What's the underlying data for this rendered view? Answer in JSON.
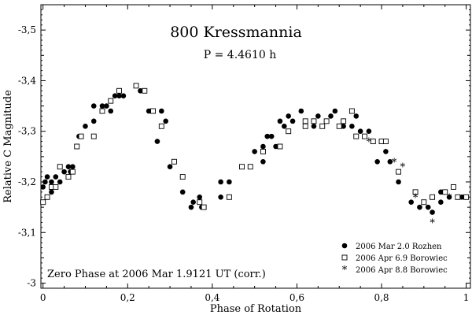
{
  "chart_data": {
    "type": "scatter",
    "title": "800 Kressmannia",
    "subtitle": "P = 4.4610 h",
    "xlabel": "Phase of Rotation",
    "ylabel": "Relative C Magnitude",
    "annotation": "Zero Phase at 2006 Mar 1.9121 UT (corr.)",
    "xlim": [
      -0.005,
      1.01
    ],
    "ylim": [
      -2.99,
      -3.55
    ],
    "x_ticks": [
      0,
      0.2,
      0.4,
      0.6,
      0.8,
      1
    ],
    "x_tick_labels": [
      "0",
      "0,2",
      "0,4",
      "0,6",
      "0,8",
      "1"
    ],
    "y_ticks": [
      -3.0,
      -3.1,
      -3.2,
      -3.3,
      -3.4,
      -3.5
    ],
    "y_tick_labels": [
      "-3",
      "-3,1",
      "-3,2",
      "-3,3",
      "-3,4",
      "-3,5"
    ],
    "legend_position": "bottom-right",
    "series": [
      {
        "name": "2006 Mar 2.0 Rozhen",
        "marker": "filled-circle",
        "points": [
          [
            0.0,
            -3.19
          ],
          [
            0.005,
            -3.2
          ],
          [
            0.01,
            -3.21
          ],
          [
            0.02,
            -3.18
          ],
          [
            0.02,
            -3.2
          ],
          [
            0.03,
            -3.21
          ],
          [
            0.04,
            -3.2
          ],
          [
            0.05,
            -3.22
          ],
          [
            0.06,
            -3.23
          ],
          [
            0.065,
            -3.22
          ],
          [
            0.07,
            -3.23
          ],
          [
            0.08,
            -3.27
          ],
          [
            0.085,
            -3.29
          ],
          [
            0.1,
            -3.31
          ],
          [
            0.12,
            -3.32
          ],
          [
            0.12,
            -3.35
          ],
          [
            0.14,
            -3.35
          ],
          [
            0.15,
            -3.35
          ],
          [
            0.16,
            -3.34
          ],
          [
            0.17,
            -3.37
          ],
          [
            0.18,
            -3.37
          ],
          [
            0.19,
            -3.37
          ],
          [
            0.23,
            -3.38
          ],
          [
            0.25,
            -3.34
          ],
          [
            0.27,
            -3.28
          ],
          [
            0.28,
            -3.34
          ],
          [
            0.29,
            -3.32
          ],
          [
            0.3,
            -3.23
          ],
          [
            0.31,
            -3.24
          ],
          [
            0.33,
            -3.18
          ],
          [
            0.35,
            -3.15
          ],
          [
            0.355,
            -3.16
          ],
          [
            0.37,
            -3.17
          ],
          [
            0.375,
            -3.15
          ],
          [
            0.42,
            -3.17
          ],
          [
            0.42,
            -3.2
          ],
          [
            0.44,
            -3.2
          ],
          [
            0.5,
            -3.26
          ],
          [
            0.52,
            -3.24
          ],
          [
            0.52,
            -3.27
          ],
          [
            0.53,
            -3.29
          ],
          [
            0.54,
            -3.29
          ],
          [
            0.55,
            -3.27
          ],
          [
            0.56,
            -3.32
          ],
          [
            0.57,
            -3.31
          ],
          [
            0.58,
            -3.33
          ],
          [
            0.59,
            -3.32
          ],
          [
            0.61,
            -3.34
          ],
          [
            0.64,
            -3.31
          ],
          [
            0.65,
            -3.33
          ],
          [
            0.68,
            -3.33
          ],
          [
            0.69,
            -3.34
          ],
          [
            0.71,
            -3.31
          ],
          [
            0.73,
            -3.31
          ],
          [
            0.74,
            -3.33
          ],
          [
            0.75,
            -3.3
          ],
          [
            0.77,
            -3.3
          ],
          [
            0.79,
            -3.24
          ],
          [
            0.81,
            -3.26
          ],
          [
            0.82,
            -3.24
          ],
          [
            0.84,
            -3.2
          ],
          [
            0.87,
            -3.16
          ],
          [
            0.89,
            -3.15
          ],
          [
            0.91,
            -3.15
          ],
          [
            0.92,
            -3.14
          ],
          [
            0.94,
            -3.16
          ],
          [
            0.94,
            -3.18
          ],
          [
            0.96,
            -3.17
          ],
          [
            0.98,
            -3.17
          ],
          [
            0.99,
            -3.17
          ]
        ]
      },
      {
        "name": "2006 Apr 6.9 Borowiec",
        "marker": "open-square",
        "points": [
          [
            0.0,
            -3.16
          ],
          [
            0.01,
            -3.17
          ],
          [
            0.02,
            -3.19
          ],
          [
            0.03,
            -3.19
          ],
          [
            0.04,
            -3.23
          ],
          [
            0.06,
            -3.21
          ],
          [
            0.07,
            -3.22
          ],
          [
            0.08,
            -3.27
          ],
          [
            0.09,
            -3.29
          ],
          [
            0.12,
            -3.29
          ],
          [
            0.14,
            -3.34
          ],
          [
            0.16,
            -3.36
          ],
          [
            0.18,
            -3.38
          ],
          [
            0.22,
            -3.39
          ],
          [
            0.24,
            -3.38
          ],
          [
            0.26,
            -3.34
          ],
          [
            0.28,
            -3.31
          ],
          [
            0.31,
            -3.24
          ],
          [
            0.33,
            -3.21
          ],
          [
            0.37,
            -3.16
          ],
          [
            0.38,
            -3.15
          ],
          [
            0.44,
            -3.17
          ],
          [
            0.47,
            -3.23
          ],
          [
            0.49,
            -3.23
          ],
          [
            0.52,
            -3.26
          ],
          [
            0.56,
            -3.27
          ],
          [
            0.58,
            -3.3
          ],
          [
            0.62,
            -3.31
          ],
          [
            0.62,
            -3.32
          ],
          [
            0.64,
            -3.32
          ],
          [
            0.66,
            -3.31
          ],
          [
            0.67,
            -3.32
          ],
          [
            0.7,
            -3.31
          ],
          [
            0.71,
            -3.32
          ],
          [
            0.73,
            -3.34
          ],
          [
            0.74,
            -3.29
          ],
          [
            0.76,
            -3.29
          ],
          [
            0.78,
            -3.28
          ],
          [
            0.8,
            -3.28
          ],
          [
            0.81,
            -3.28
          ],
          [
            0.84,
            -3.22
          ],
          [
            0.88,
            -3.18
          ],
          [
            0.9,
            -3.16
          ],
          [
            0.92,
            -3.17
          ],
          [
            0.95,
            -3.18
          ],
          [
            0.97,
            -3.19
          ],
          [
            0.98,
            -3.17
          ],
          [
            1.0,
            -3.17
          ]
        ]
      },
      {
        "name": "2006 Apr 8.8 Borowiec",
        "marker": "asterisk",
        "points": [
          [
            0.77,
            -3.28
          ],
          [
            0.83,
            -3.24
          ],
          [
            0.85,
            -3.23
          ],
          [
            0.88,
            -3.17
          ],
          [
            0.92,
            -3.12
          ],
          [
            0.96,
            -3.17
          ]
        ]
      }
    ]
  }
}
